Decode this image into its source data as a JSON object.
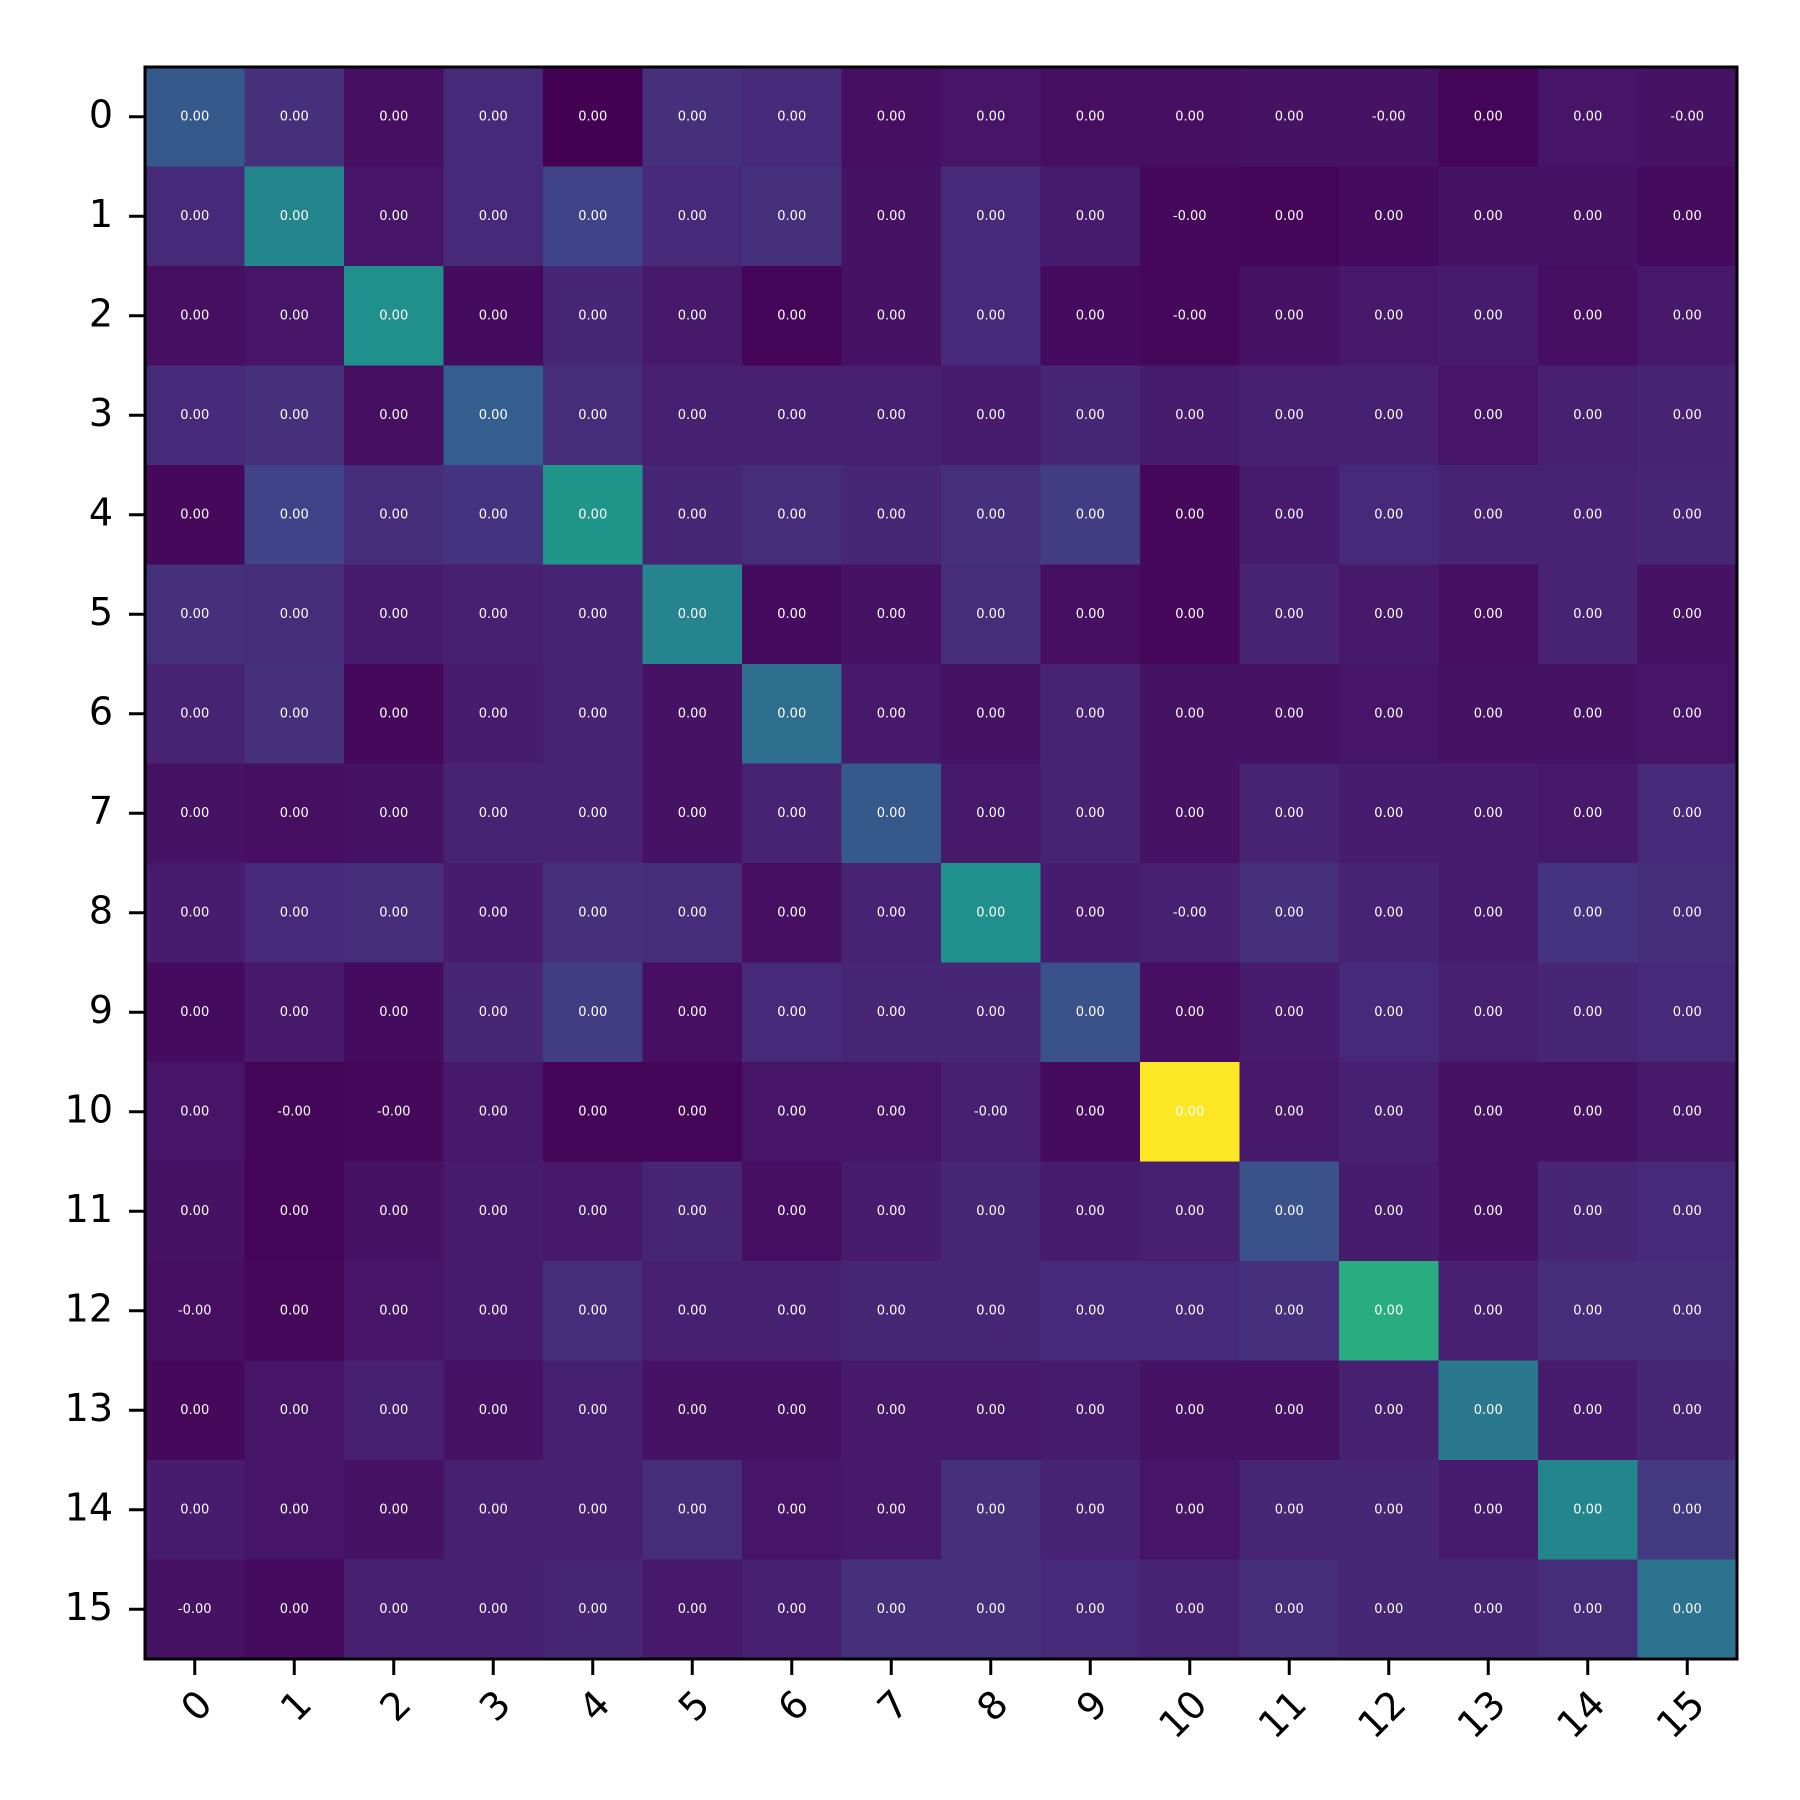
{
  "chart_data": {
    "type": "heatmap",
    "title": "",
    "xlabel": "",
    "ylabel": "",
    "rows": [
      "0",
      "1",
      "2",
      "3",
      "4",
      "5",
      "6",
      "7",
      "8",
      "9",
      "10",
      "11",
      "12",
      "13",
      "14",
      "15"
    ],
    "cols": [
      "0",
      "1",
      "2",
      "3",
      "4",
      "5",
      "6",
      "7",
      "8",
      "9",
      "10",
      "11",
      "12",
      "13",
      "14",
      "15"
    ],
    "colormap": "viridis",
    "x_tick_rotation_deg": 45,
    "grid": false,
    "legend": "none",
    "intensity": [
      [
        0.28,
        0.14,
        0.04,
        0.12,
        0.0,
        0.14,
        0.12,
        0.04,
        0.06,
        0.04,
        0.04,
        0.05,
        0.05,
        0.01,
        0.06,
        0.05
      ],
      [
        0.12,
        0.46,
        0.06,
        0.12,
        0.2,
        0.12,
        0.14,
        0.05,
        0.12,
        0.08,
        0.02,
        0.01,
        0.03,
        0.05,
        0.05,
        0.03
      ],
      [
        0.04,
        0.06,
        0.5,
        0.03,
        0.11,
        0.07,
        0.01,
        0.05,
        0.12,
        0.03,
        0.02,
        0.05,
        0.07,
        0.08,
        0.04,
        0.07
      ],
      [
        0.12,
        0.14,
        0.04,
        0.3,
        0.13,
        0.09,
        0.09,
        0.09,
        0.08,
        0.11,
        0.08,
        0.09,
        0.09,
        0.06,
        0.09,
        0.1
      ],
      [
        0.02,
        0.2,
        0.13,
        0.15,
        0.52,
        0.11,
        0.13,
        0.11,
        0.14,
        0.18,
        0.02,
        0.08,
        0.12,
        0.1,
        0.1,
        0.11
      ],
      [
        0.14,
        0.13,
        0.08,
        0.09,
        0.1,
        0.45,
        0.03,
        0.05,
        0.13,
        0.04,
        0.02,
        0.1,
        0.07,
        0.04,
        0.1,
        0.05
      ],
      [
        0.1,
        0.14,
        0.02,
        0.08,
        0.1,
        0.05,
        0.36,
        0.07,
        0.05,
        0.1,
        0.05,
        0.05,
        0.06,
        0.05,
        0.05,
        0.06
      ],
      [
        0.05,
        0.04,
        0.05,
        0.1,
        0.1,
        0.05,
        0.1,
        0.28,
        0.07,
        0.1,
        0.05,
        0.1,
        0.08,
        0.08,
        0.07,
        0.12
      ],
      [
        0.08,
        0.12,
        0.13,
        0.08,
        0.14,
        0.13,
        0.04,
        0.1,
        0.5,
        0.08,
        0.09,
        0.14,
        0.1,
        0.08,
        0.15,
        0.13
      ],
      [
        0.03,
        0.07,
        0.03,
        0.11,
        0.18,
        0.04,
        0.12,
        0.11,
        0.11,
        0.25,
        0.04,
        0.08,
        0.12,
        0.09,
        0.11,
        0.12
      ],
      [
        0.06,
        0.01,
        0.02,
        0.07,
        0.01,
        0.01,
        0.06,
        0.06,
        0.09,
        0.03,
        1.0,
        0.07,
        0.09,
        0.05,
        0.05,
        0.07
      ],
      [
        0.05,
        0.01,
        0.05,
        0.08,
        0.07,
        0.11,
        0.04,
        0.08,
        0.11,
        0.08,
        0.09,
        0.25,
        0.08,
        0.05,
        0.11,
        0.12
      ],
      [
        0.04,
        0.02,
        0.06,
        0.08,
        0.13,
        0.09,
        0.09,
        0.11,
        0.11,
        0.12,
        0.12,
        0.14,
        0.62,
        0.09,
        0.13,
        0.13
      ],
      [
        0.02,
        0.06,
        0.09,
        0.05,
        0.09,
        0.05,
        0.05,
        0.07,
        0.07,
        0.08,
        0.05,
        0.05,
        0.09,
        0.4,
        0.08,
        0.11
      ],
      [
        0.08,
        0.06,
        0.05,
        0.09,
        0.09,
        0.13,
        0.06,
        0.07,
        0.14,
        0.1,
        0.06,
        0.11,
        0.11,
        0.08,
        0.46,
        0.17
      ],
      [
        0.05,
        0.03,
        0.09,
        0.09,
        0.11,
        0.07,
        0.09,
        0.14,
        0.14,
        0.12,
        0.1,
        0.13,
        0.11,
        0.11,
        0.13,
        0.38
      ]
    ],
    "labels": [
      [
        "0.00",
        "0.00",
        "0.00",
        "0.00",
        "0.00",
        "0.00",
        "0.00",
        "0.00",
        "0.00",
        "0.00",
        "0.00",
        "0.00",
        "-0.00",
        "0.00",
        "0.00",
        "-0.00"
      ],
      [
        "0.00",
        "0.00",
        "0.00",
        "0.00",
        "0.00",
        "0.00",
        "0.00",
        "0.00",
        "0.00",
        "0.00",
        "-0.00",
        "0.00",
        "0.00",
        "0.00",
        "0.00",
        "0.00"
      ],
      [
        "0.00",
        "0.00",
        "0.00",
        "0.00",
        "0.00",
        "0.00",
        "0.00",
        "0.00",
        "0.00",
        "0.00",
        "-0.00",
        "0.00",
        "0.00",
        "0.00",
        "0.00",
        "0.00"
      ],
      [
        "0.00",
        "0.00",
        "0.00",
        "0.00",
        "0.00",
        "0.00",
        "0.00",
        "0.00",
        "0.00",
        "0.00",
        "0.00",
        "0.00",
        "0.00",
        "0.00",
        "0.00",
        "0.00"
      ],
      [
        "0.00",
        "0.00",
        "0.00",
        "0.00",
        "0.00",
        "0.00",
        "0.00",
        "0.00",
        "0.00",
        "0.00",
        "0.00",
        "0.00",
        "0.00",
        "0.00",
        "0.00",
        "0.00"
      ],
      [
        "0.00",
        "0.00",
        "0.00",
        "0.00",
        "0.00",
        "0.00",
        "0.00",
        "0.00",
        "0.00",
        "0.00",
        "0.00",
        "0.00",
        "0.00",
        "0.00",
        "0.00",
        "0.00"
      ],
      [
        "0.00",
        "0.00",
        "0.00",
        "0.00",
        "0.00",
        "0.00",
        "0.00",
        "0.00",
        "0.00",
        "0.00",
        "0.00",
        "0.00",
        "0.00",
        "0.00",
        "0.00",
        "0.00"
      ],
      [
        "0.00",
        "0.00",
        "0.00",
        "0.00",
        "0.00",
        "0.00",
        "0.00",
        "0.00",
        "0.00",
        "0.00",
        "0.00",
        "0.00",
        "0.00",
        "0.00",
        "0.00",
        "0.00"
      ],
      [
        "0.00",
        "0.00",
        "0.00",
        "0.00",
        "0.00",
        "0.00",
        "0.00",
        "0.00",
        "0.00",
        "0.00",
        "-0.00",
        "0.00",
        "0.00",
        "0.00",
        "0.00",
        "0.00"
      ],
      [
        "0.00",
        "0.00",
        "0.00",
        "0.00",
        "0.00",
        "0.00",
        "0.00",
        "0.00",
        "0.00",
        "0.00",
        "0.00",
        "0.00",
        "0.00",
        "0.00",
        "0.00",
        "0.00"
      ],
      [
        "0.00",
        "-0.00",
        "-0.00",
        "0.00",
        "0.00",
        "0.00",
        "0.00",
        "0.00",
        "-0.00",
        "0.00",
        "0.00",
        "0.00",
        "0.00",
        "0.00",
        "0.00",
        "0.00"
      ],
      [
        "0.00",
        "0.00",
        "0.00",
        "0.00",
        "0.00",
        "0.00",
        "0.00",
        "0.00",
        "0.00",
        "0.00",
        "0.00",
        "0.00",
        "0.00",
        "0.00",
        "0.00",
        "0.00"
      ],
      [
        "-0.00",
        "0.00",
        "0.00",
        "0.00",
        "0.00",
        "0.00",
        "0.00",
        "0.00",
        "0.00",
        "0.00",
        "0.00",
        "0.00",
        "0.00",
        "0.00",
        "0.00",
        "0.00"
      ],
      [
        "0.00",
        "0.00",
        "0.00",
        "0.00",
        "0.00",
        "0.00",
        "0.00",
        "0.00",
        "0.00",
        "0.00",
        "0.00",
        "0.00",
        "0.00",
        "0.00",
        "0.00",
        "0.00"
      ],
      [
        "0.00",
        "0.00",
        "0.00",
        "0.00",
        "0.00",
        "0.00",
        "0.00",
        "0.00",
        "0.00",
        "0.00",
        "0.00",
        "0.00",
        "0.00",
        "0.00",
        "0.00",
        "0.00"
      ],
      [
        "-0.00",
        "0.00",
        "0.00",
        "0.00",
        "0.00",
        "0.00",
        "0.00",
        "0.00",
        "0.00",
        "0.00",
        "0.00",
        "0.00",
        "0.00",
        "0.00",
        "0.00",
        "0.00"
      ]
    ]
  }
}
